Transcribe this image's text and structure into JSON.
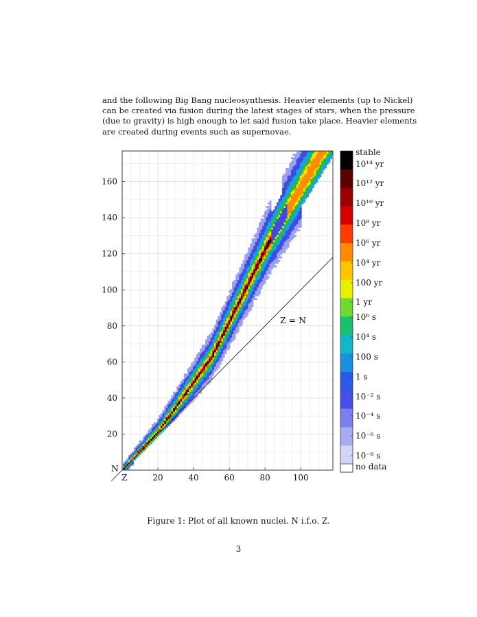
{
  "paragraph": {
    "lines": [
      "and the following Big Bang nucleosynthesis. Heavier elements (up to Nickel)",
      "can be created via fusion during the latest stages of stars, when the pressure",
      "(due to gravity) is high enough to let said fusion take place. Heavier elements",
      "are created during events such as supernovae."
    ]
  },
  "figure": {
    "caption": "Figure 1: Plot of all known nuclei. N i.f.o. Z.",
    "annotation": "Z = N",
    "colors": {
      "stable": "#000000",
      "very_long": "#8b0000",
      "long": "#e00000",
      "years": "#ff8c00",
      "year": "#f5e400",
      "hours": "#22c020",
      "seconds": "#1aa0d8",
      "short": "#3a4be0",
      "very_short": "#9aa0ee",
      "no_data": "#ffffff"
    }
  },
  "chart_data": {
    "type": "heatmap",
    "xlabel": "Z",
    "ylabel": "N",
    "xlim": [
      0,
      118
    ],
    "ylim": [
      0,
      177
    ],
    "x_ticks": [
      20,
      40,
      60,
      80,
      100
    ],
    "y_ticks": [
      20,
      40,
      60,
      80,
      100,
      120,
      140,
      160
    ],
    "reference_line": "Z = N",
    "legend_placement": "right",
    "legend": [
      "stable",
      "10¹⁴ yr",
      "10¹² yr",
      "10¹⁰ yr",
      "10⁸ yr",
      "10⁶ yr",
      "10⁴ yr",
      "100 yr",
      "1 yr",
      "10⁶ s",
      "10⁴ s",
      "100 s",
      "1 s",
      "10⁻² s",
      "10⁻⁴ s",
      "10⁻⁶ s",
      "10⁻⁸ s",
      "no data"
    ],
    "grid": true
  },
  "page_number": "3"
}
